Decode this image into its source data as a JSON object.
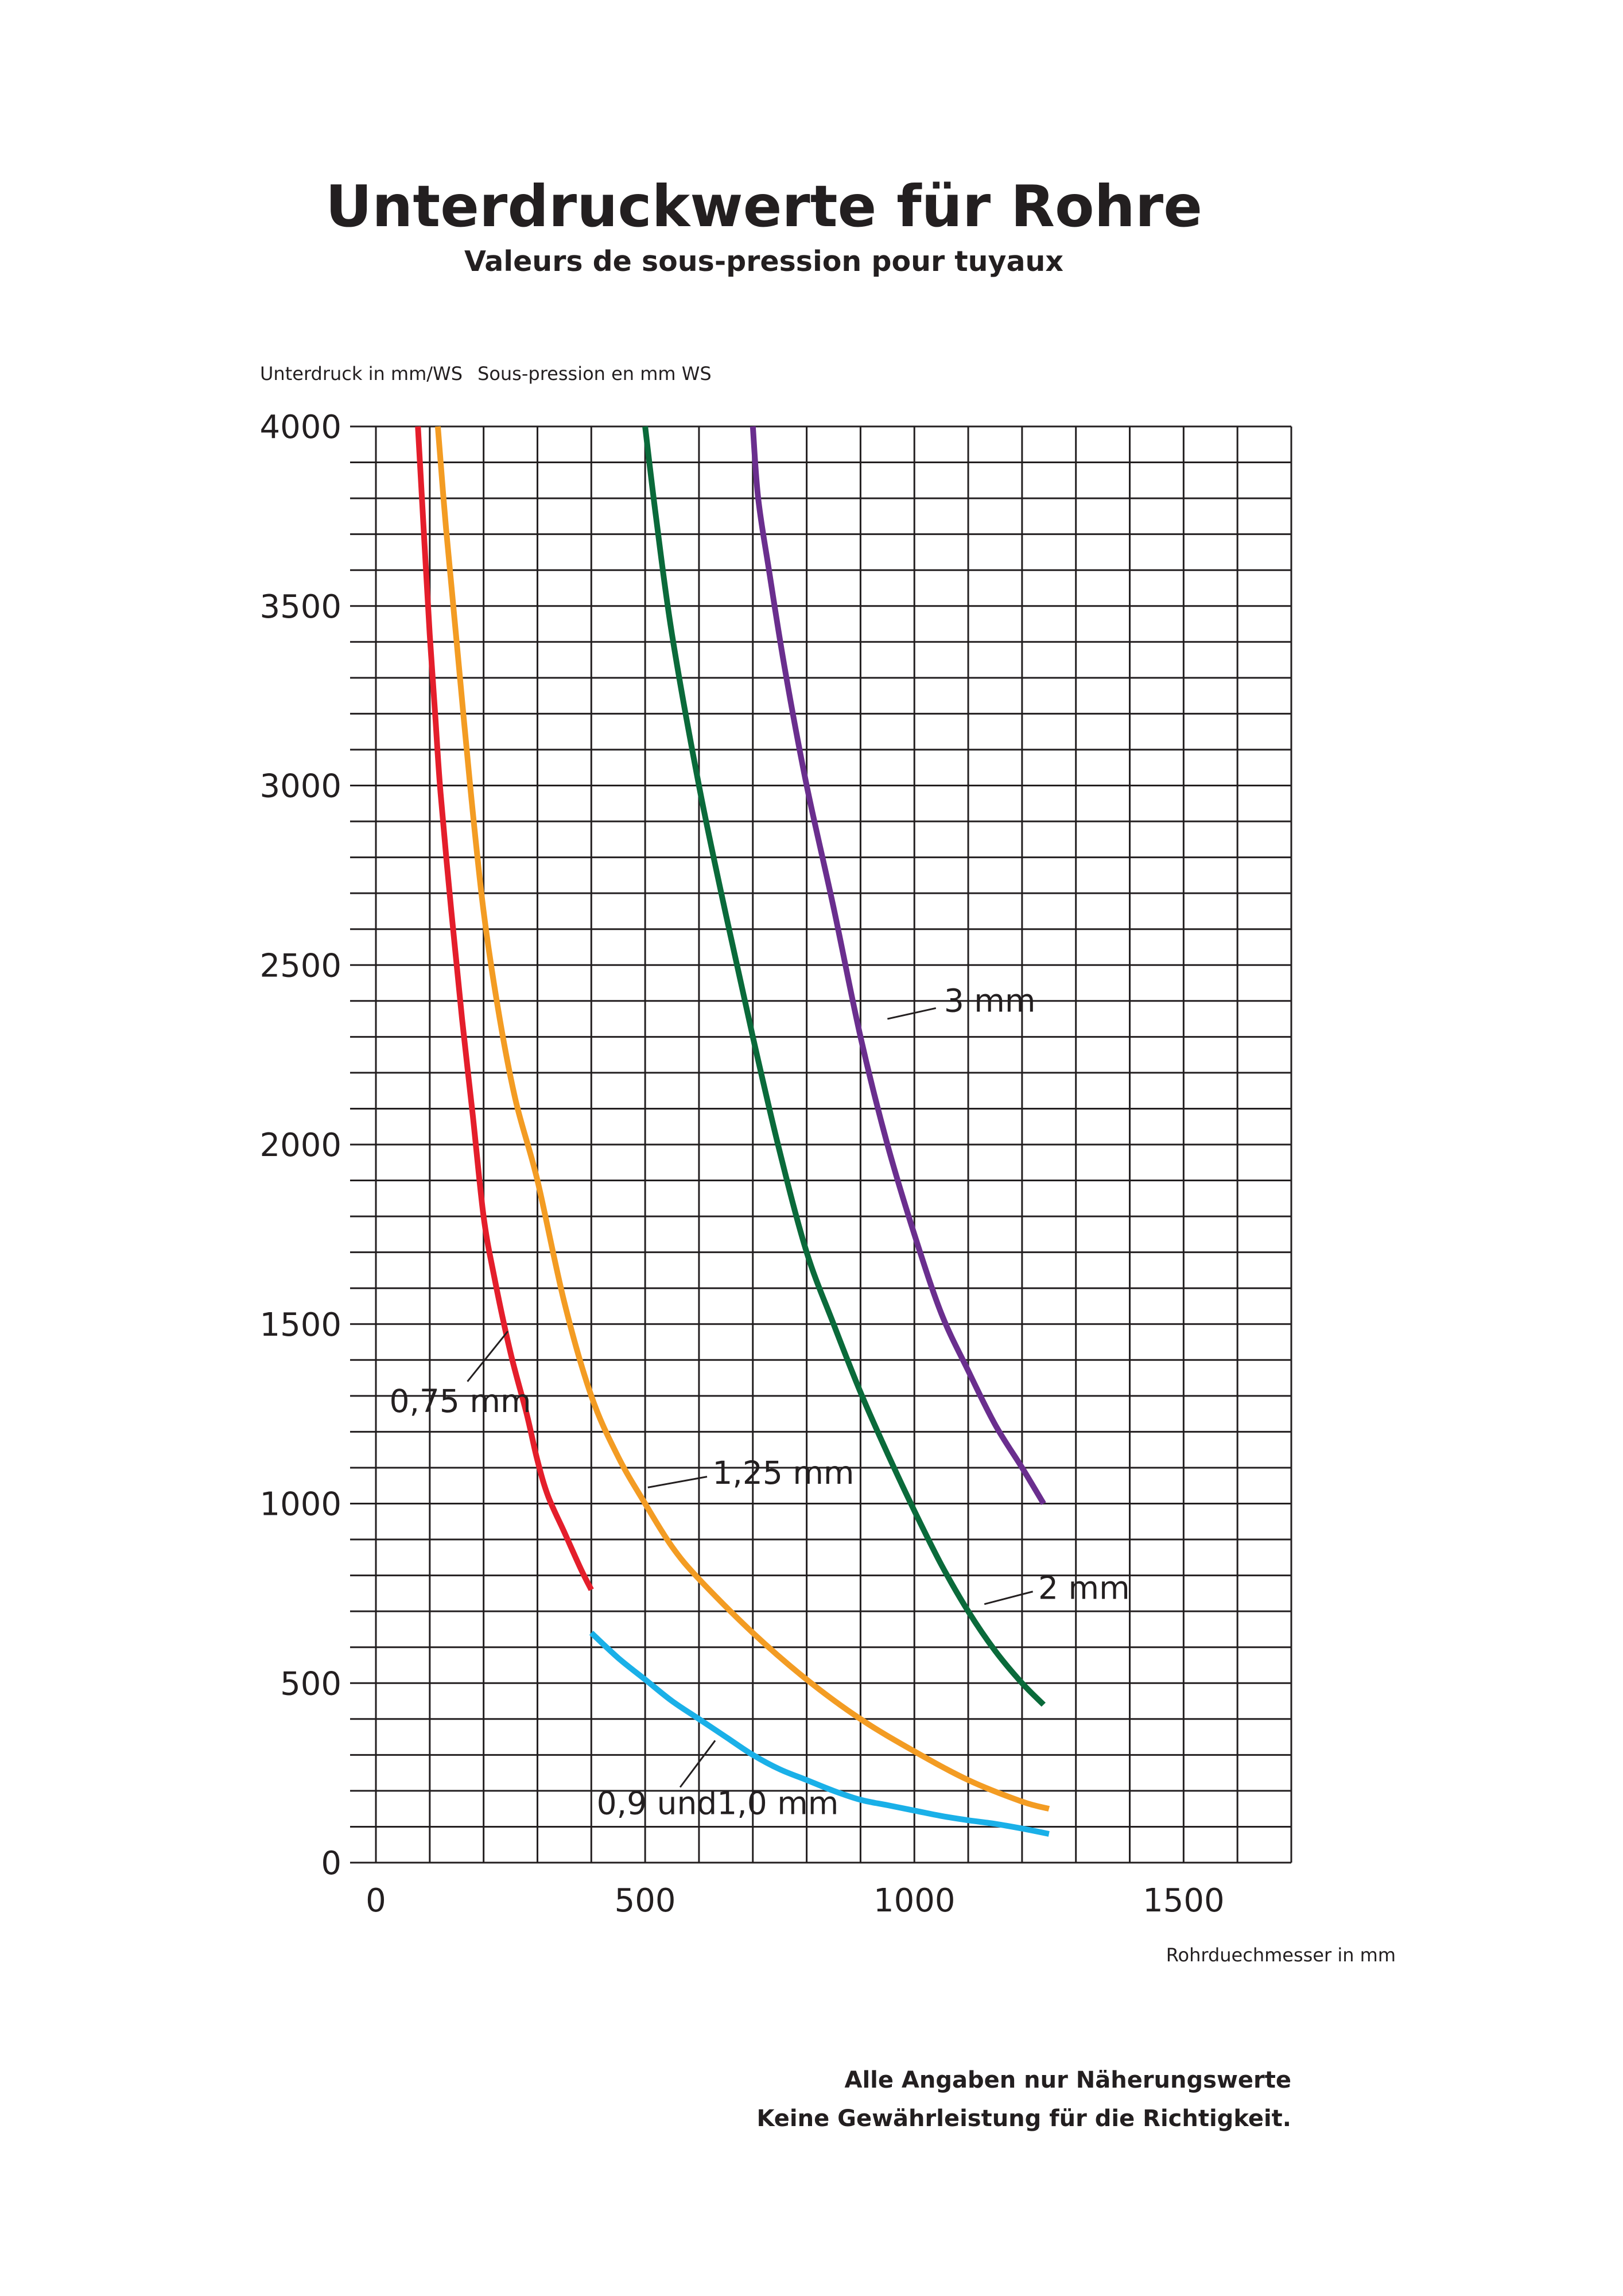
{
  "chart_data": {
    "type": "line",
    "title": "Unterdruckwerte für Rohre",
    "subtitle": "Valeurs de sous-pression pour tuyaux",
    "ylabel": "Unterdruck in mm/WS",
    "ylabel_fr": "Sous-pression en mm WS",
    "xlabel": "Rohrduechmesser in mm",
    "xlim": [
      0,
      1700
    ],
    "ylim": [
      0,
      4000
    ],
    "x_ticks": [
      "0",
      "500",
      "1000",
      "1500"
    ],
    "y_ticks": [
      "0",
      "500",
      "1000",
      "1500",
      "2000",
      "2500",
      "3000",
      "3500",
      "4000"
    ],
    "grid": true,
    "grid_x_step": 100,
    "grid_y_step": 100,
    "series": [
      {
        "name": "0,75 mm",
        "color": "#e41e2b",
        "x": [
          78,
          90,
          100,
          110,
          120,
          140,
          160,
          180,
          200,
          220,
          250,
          280,
          300,
          320,
          350,
          380,
          400
        ],
        "y": [
          4000,
          3680,
          3420,
          3200,
          2980,
          2650,
          2350,
          2080,
          1800,
          1630,
          1420,
          1250,
          1120,
          1020,
          920,
          820,
          760
        ]
      },
      {
        "name": "1,25 mm",
        "color": "#f39c23",
        "x": [
          115,
          130,
          150,
          175,
          200,
          230,
          260,
          300,
          350,
          400,
          450,
          500,
          550,
          600,
          700,
          800,
          900,
          1000,
          1100,
          1200,
          1250
        ],
        "y": [
          4000,
          3720,
          3400,
          3000,
          2650,
          2350,
          2120,
          1900,
          1560,
          1300,
          1130,
          1000,
          880,
          790,
          640,
          510,
          400,
          310,
          230,
          170,
          150
        ]
      },
      {
        "name": "0,9 und1,0 mm",
        "color": "#1ab0e8",
        "x": [
          400,
          450,
          500,
          550,
          600,
          650,
          700,
          750,
          800,
          850,
          900,
          950,
          1000,
          1050,
          1100,
          1150,
          1200,
          1250
        ],
        "y": [
          640,
          570,
          510,
          450,
          400,
          350,
          300,
          260,
          230,
          200,
          175,
          160,
          145,
          130,
          118,
          108,
          95,
          80
        ]
      },
      {
        "name": "2 mm",
        "color": "#0a6a3a",
        "x": [
          500,
          520,
          550,
          600,
          650,
          700,
          750,
          800,
          850,
          900,
          950,
          1000,
          1050,
          1100,
          1150,
          1200,
          1240
        ],
        "y": [
          4000,
          3750,
          3420,
          3000,
          2640,
          2300,
          1980,
          1700,
          1500,
          1310,
          1140,
          980,
          830,
          700,
          590,
          500,
          440
        ]
      },
      {
        "name": "3 mm",
        "color": "#6a2e8e",
        "x": [
          700,
          710,
          730,
          760,
          800,
          850,
          900,
          950,
          1000,
          1050,
          1100,
          1150,
          1200,
          1240
        ],
        "y": [
          4000,
          3800,
          3600,
          3320,
          3000,
          2660,
          2300,
          2000,
          1750,
          1530,
          1370,
          1220,
          1100,
          1000
        ]
      }
    ],
    "annotations": [
      {
        "label": "3 mm",
        "series": "3 mm"
      },
      {
        "label": "0,75 mm",
        "series": "0,75 mm"
      },
      {
        "label": "1,25 mm",
        "series": "1,25 mm"
      },
      {
        "label": "2 mm",
        "series": "2 mm"
      },
      {
        "label": "0,9 und1,0 mm",
        "series": "0,9 und1,0 mm"
      }
    ]
  },
  "notes": {
    "line1": "Alle Angaben nur Näherungswerte",
    "line2": "Keine Gewährleistung für die Richtigkeit."
  }
}
